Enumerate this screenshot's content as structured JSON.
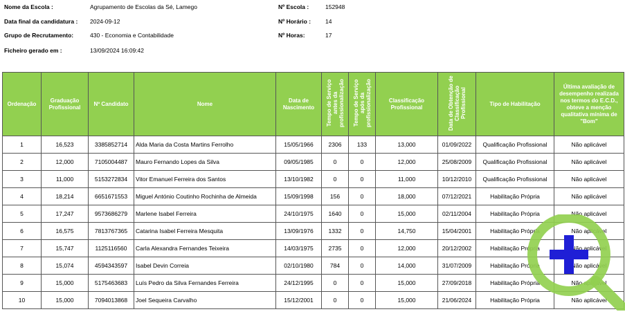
{
  "header": {
    "school_label": "Nome da Escola :",
    "school_value": "Agrupamento de Escolas da Sé, Lamego",
    "deadline_label": "Data final da candidatura :",
    "deadline_value": "2024-09-12",
    "group_label": "Grupo de Recrutamento:",
    "group_value": "430 - Economia e Contabilidade",
    "generated_label": "Ficheiro gerado em :",
    "generated_value": "13/09/2024 16:09:42",
    "school_no_label": "Nº Escola :",
    "school_no_value": "152948",
    "schedule_no_label": "Nº Horário :",
    "schedule_no_value": "14",
    "hours_label": "Nº Horas:",
    "hours_value": "17"
  },
  "table": {
    "columns": [
      "Ordenação",
      "Graduação Profissional",
      "Nº Candidato",
      "Nome",
      "Data de Nascimento",
      "Tempo de Serviço antes da profissionalização",
      "Tempo de Serviço após da profissionalização",
      "Classificação Profissional",
      "Data de Obtenção de Classificação Profissional",
      "Tipo de Habilitação",
      "Última avaliação de desempenho realizada nos termos do E.C.D., obteve a menção qualitativa mínima de \"Bom\""
    ],
    "rows": [
      [
        "1",
        "16,523",
        "3385852714",
        "Alda Maria da Costa Martins Ferrolho",
        "15/05/1966",
        "2306",
        "133",
        "13,000",
        "01/09/2022",
        "Qualificação Profissional",
        "Não aplicável"
      ],
      [
        "2",
        "12,000",
        "7105004487",
        "Mauro Fernando Lopes da Silva",
        "09/05/1985",
        "0",
        "0",
        "12,000",
        "25/08/2009",
        "Qualificação Profissional",
        "Não aplicável"
      ],
      [
        "3",
        "11,000",
        "5153272834",
        "Vitor Emanuel Ferreira dos Santos",
        "13/10/1982",
        "0",
        "0",
        "11,000",
        "10/12/2010",
        "Qualificação Profissional",
        "Não aplicável"
      ],
      [
        "4",
        "18,214",
        "6651671553",
        "Miguel António Coutinho Rochinha de Almeida",
        "15/09/1998",
        "156",
        "0",
        "18,000",
        "07/12/2021",
        "Habilitação Própria",
        "Não aplicável"
      ],
      [
        "5",
        "17,247",
        "9573686279",
        "Marlene Isabel Ferreira",
        "24/10/1975",
        "1640",
        "0",
        "15,000",
        "02/11/2004",
        "Habilitação Própria",
        "Não aplicável"
      ],
      [
        "6",
        "16,575",
        "7813767365",
        "Catarina Isabel Ferreira Mesquita",
        "13/09/1976",
        "1332",
        "0",
        "14,750",
        "15/04/2001",
        "Habilitação Própria",
        "Não aplicável"
      ],
      [
        "7",
        "15,747",
        "1125116560",
        "Carla Alexandra Fernandes Teixeira",
        "14/03/1975",
        "2735",
        "0",
        "12,000",
        "20/12/2002",
        "Habilitação Própria",
        "Não aplicável"
      ],
      [
        "8",
        "15,074",
        "4594343597",
        "Isabel Devin Correia",
        "02/10/1980",
        "784",
        "0",
        "14,000",
        "31/07/2009",
        "Habilitação Própria",
        "Não aplicável"
      ],
      [
        "9",
        "15,000",
        "5175463683",
        "Luís Pedro da Silva Fernandes Ferreira",
        "24/12/1995",
        "0",
        "0",
        "15,000",
        "27/09/2018",
        "Habilitação Própria",
        "Não aplicável"
      ],
      [
        "10",
        "15,000",
        "7094013868",
        "Joel Sequeira Carvalho",
        "15/12/2001",
        "0",
        "0",
        "15,000",
        "21/06/2024",
        "Habilitação Própria",
        "Não aplicável"
      ]
    ]
  },
  "zoom_button": {
    "icon": "zoom-in-icon",
    "ring_color": "#92d050",
    "plus_color": "#1f1fd6"
  }
}
